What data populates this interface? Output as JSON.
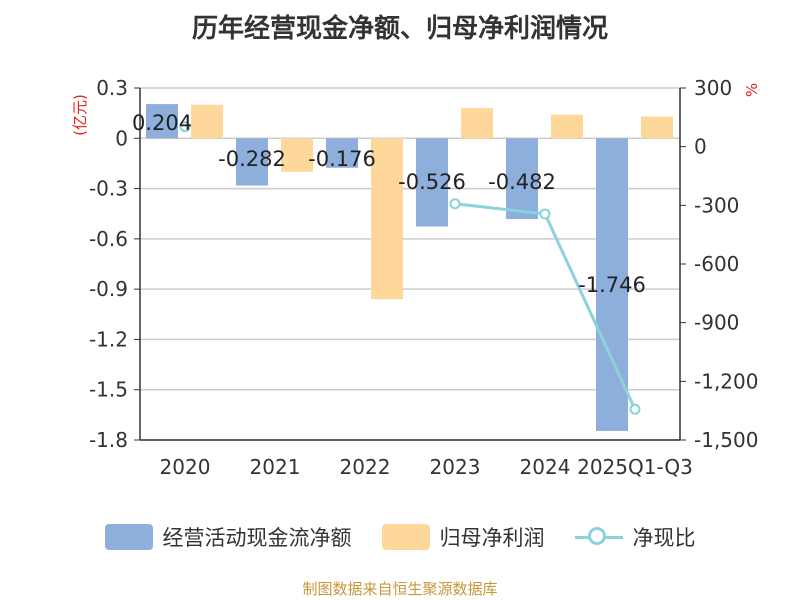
{
  "chart_data": {
    "type": "bar",
    "title": "历年经营现金净额、归母净利润情况",
    "categories": [
      "2020",
      "2021",
      "2022",
      "2023",
      "2024",
      "2025Q1-Q3"
    ],
    "series": [
      {
        "name": "经营活动现金流净额",
        "axis": "left",
        "color": "#8eaedb",
        "values": [
          0.204,
          -0.282,
          -0.176,
          -0.526,
          -0.482,
          -1.746
        ],
        "data_labels": [
          "0.204",
          "-0.282",
          "-0.176",
          "-0.526",
          "-0.482",
          "-1.746"
        ]
      },
      {
        "name": "归母净利润",
        "axis": "left",
        "color": "#fdd89a",
        "values": [
          0.2,
          -0.2,
          -0.96,
          0.18,
          0.14,
          0.13
        ]
      },
      {
        "name": "净现比",
        "type": "line",
        "axis": "right",
        "color": "#8ad3dc",
        "values": [
          102,
          null,
          null,
          -292,
          -344,
          -1343
        ]
      }
    ],
    "left_axis": {
      "label": "(亿元)",
      "ylim": [
        -1.8,
        0.3
      ],
      "ticks": [
        "0.3",
        "0",
        "-0.3",
        "-0.6",
        "-0.9",
        "-1.2",
        "-1.5",
        "-1.8"
      ]
    },
    "right_axis": {
      "label": "%",
      "ylim": [
        -1500,
        300
      ],
      "ticks": [
        "300",
        "0",
        "-300",
        "-600",
        "-900",
        "-1,200",
        "-1,500"
      ]
    },
    "grid": true,
    "legend_position": "bottom"
  },
  "source_text": "制图数据来自恒生聚源数据库"
}
